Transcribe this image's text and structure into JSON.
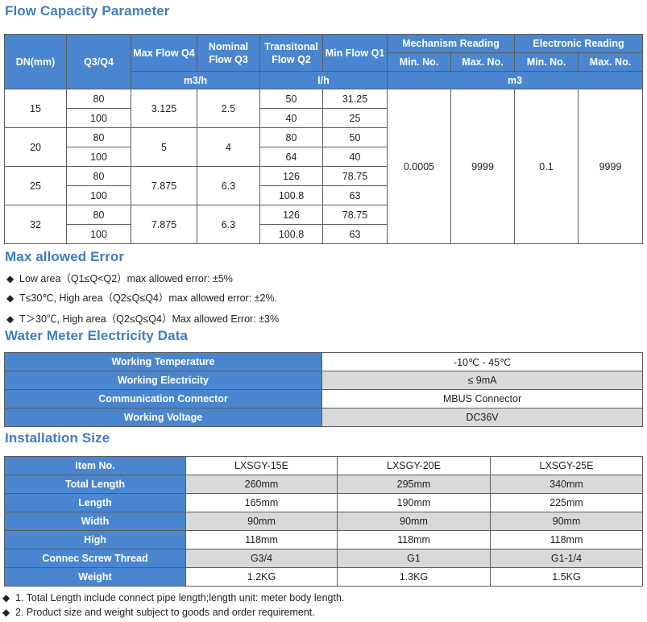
{
  "flow": {
    "title": "Flow Capacity Parameter",
    "headers": {
      "dn": "DN(mm)",
      "q3q4": "Q3/Q4",
      "max_flow": "Max Flow Q4",
      "nominal_flow": "Nominal Flow Q3",
      "transitional_flow": "Transitonal Flow Q2",
      "min_flow": "Min Flow Q1",
      "mechanism": "Mechanism Reading",
      "electronic": "Electronic Reading",
      "min_no": "Min. No.",
      "max_no": "Max. No.",
      "unit_m3h": "m3/h",
      "unit_lh": "l/h",
      "unit_m3": "m3"
    },
    "groups": [
      {
        "dn": "15",
        "q4": "3.125",
        "q3": "2.5",
        "rows": [
          {
            "ratio": "80",
            "q2": "50",
            "q1": "31.25"
          },
          {
            "ratio": "100",
            "q2": "40",
            "q1": "25"
          }
        ]
      },
      {
        "dn": "20",
        "q4": "5",
        "q3": "4",
        "rows": [
          {
            "ratio": "80",
            "q2": "80",
            "q1": "50"
          },
          {
            "ratio": "100",
            "q2": "64",
            "q1": "40"
          }
        ]
      },
      {
        "dn": "25",
        "q4": "7.875",
        "q3": "6.3",
        "rows": [
          {
            "ratio": "80",
            "q2": "126",
            "q1": "78.75"
          },
          {
            "ratio": "100",
            "q2": "100.8",
            "q1": "63"
          }
        ]
      },
      {
        "dn": "32",
        "q4": "7.875",
        "q3": "6.3",
        "rows": [
          {
            "ratio": "80",
            "q2": "126",
            "q1": "78.75"
          },
          {
            "ratio": "100",
            "q2": "100.8",
            "q1": "63"
          }
        ]
      }
    ],
    "readings": {
      "mech_min": "0.0005",
      "mech_max": "9999",
      "elec_min": "0.1",
      "elec_max": "9999"
    }
  },
  "error": {
    "title": "Max allowed Error",
    "bullet_glyph": "◆",
    "items": [
      "Low area（Q1≤Q<Q2）max allowed error: ±5%",
      "T≤30℃, High area（Q2≤Q≤Q4）max allowed error: ±2%.",
      "T＞30℃, High area（Q2≤Q≤Q4）Max allowed Error: ±3%"
    ]
  },
  "electricity": {
    "title": "Water Meter Electricity Data",
    "rows": [
      {
        "label": "Working Temperature",
        "value": "-10℃ - 45℃"
      },
      {
        "label": "Working Electricity",
        "value": "≤ 9mA"
      },
      {
        "label": "Communication Connector",
        "value": "MBUS Connector"
      },
      {
        "label": "Working Voltage",
        "value": "DC36V"
      }
    ]
  },
  "installation": {
    "title": "Installation Size",
    "header": {
      "label": "Item No.",
      "models": [
        "LXSGY-15E",
        "LXSGY-20E",
        "LXSGY-25E"
      ]
    },
    "rows": [
      {
        "label": "Total Length",
        "values": [
          "260mm",
          "295mm",
          "340mm"
        ]
      },
      {
        "label": "Length",
        "values": [
          "165mm",
          "190mm",
          "225mm"
        ]
      },
      {
        "label": "Width",
        "values": [
          "90mm",
          "90mm",
          "90mm"
        ]
      },
      {
        "label": "High",
        "values": [
          "118mm",
          "118mm",
          "118mm"
        ]
      },
      {
        "label": "Connec Screw Thread",
        "values": [
          "G3/4",
          "G1",
          "G1-1/4"
        ]
      },
      {
        "label": "Weight",
        "values": [
          "1.2KG",
          "1.3KG",
          "1.5KG"
        ]
      }
    ],
    "notes": [
      "1. Total Length include connect pipe length;length unit: meter body length.",
      "2. Product size and weight subject to goods and order requirement."
    ]
  },
  "colors": {
    "header_blue": "#4a86cf",
    "title_blue": "#3e7dc4",
    "gray_cell": "#d9d9d9"
  }
}
